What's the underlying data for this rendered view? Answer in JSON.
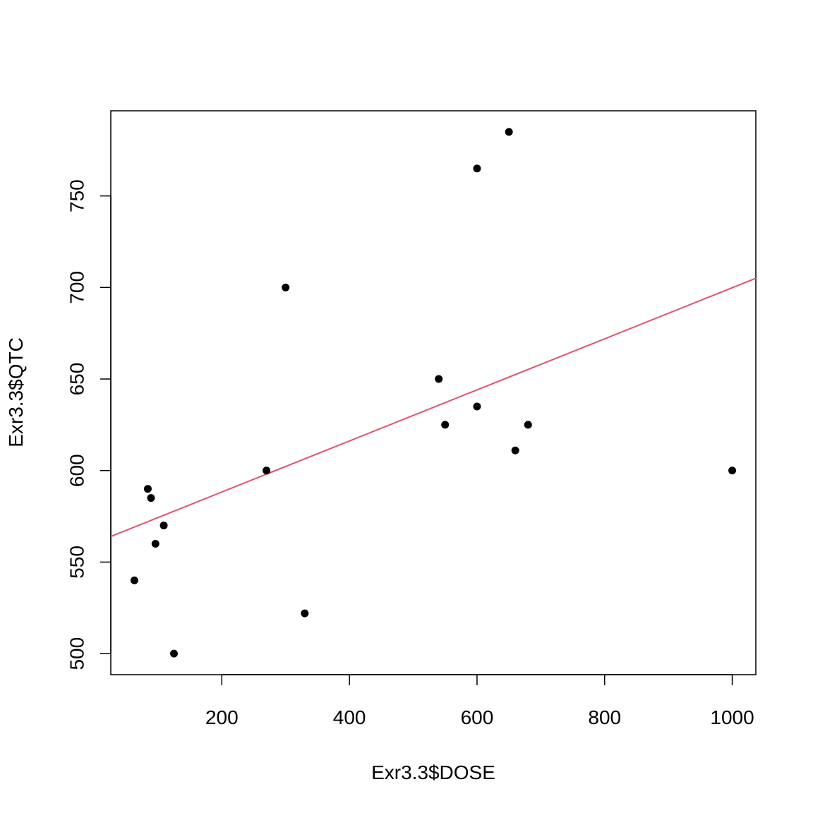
{
  "chart_data": {
    "type": "scatter",
    "title": "",
    "xlabel": "Exr3.3$DOSE",
    "ylabel": "Exr3.3$QTC",
    "xlim": [
      26,
      1037
    ],
    "ylim": [
      488.5,
      796.5
    ],
    "x_ticks": [
      200,
      400,
      600,
      800,
      1000
    ],
    "y_ticks": [
      500,
      550,
      600,
      650,
      700,
      750
    ],
    "grid": false,
    "legend": "none",
    "point_color": "#000000",
    "points": [
      {
        "x": 63,
        "y": 540
      },
      {
        "x": 84,
        "y": 590
      },
      {
        "x": 89,
        "y": 585
      },
      {
        "x": 96,
        "y": 560
      },
      {
        "x": 109,
        "y": 570
      },
      {
        "x": 125,
        "y": 500
      },
      {
        "x": 270,
        "y": 600
      },
      {
        "x": 300,
        "y": 700
      },
      {
        "x": 330,
        "y": 522
      },
      {
        "x": 540,
        "y": 650
      },
      {
        "x": 550,
        "y": 625
      },
      {
        "x": 600,
        "y": 765
      },
      {
        "x": 600,
        "y": 635
      },
      {
        "x": 650,
        "y": 785
      },
      {
        "x": 660,
        "y": 611
      },
      {
        "x": 680,
        "y": 625
      },
      {
        "x": 1000,
        "y": 600
      }
    ],
    "fit_line": {
      "color": "#DF536B",
      "x_start": 26,
      "y_start": 564,
      "x_end": 1037,
      "y_end": 705
    }
  }
}
